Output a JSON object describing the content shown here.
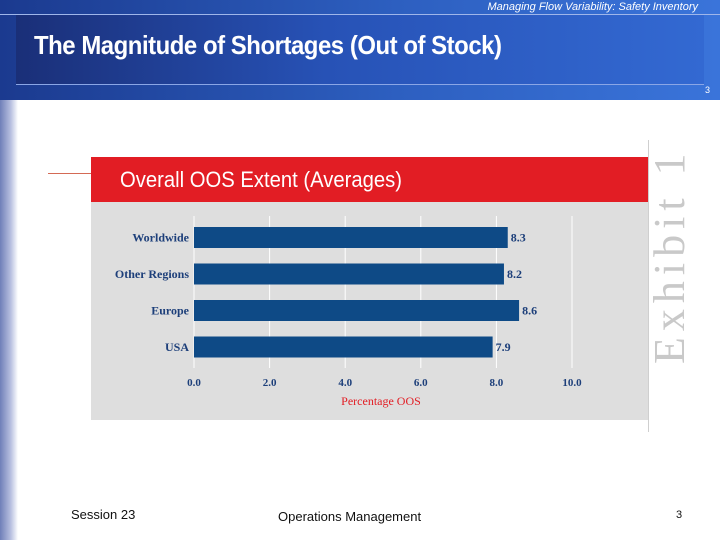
{
  "slide": {
    "subtitle": "Managing Flow Variability:  Safety Inventory",
    "title": "The Magnitude of Shortages  (Out of Stock)",
    "slide_number_top": "3",
    "exhibit_label": "Exhibit 1"
  },
  "footer": {
    "session": "Session 23",
    "course": "Operations Management",
    "page": "3"
  },
  "colors": {
    "bar": "#0e4a86",
    "title_bar": "#e21d24",
    "panel": "#dedede",
    "gridline": "#ffffff"
  },
  "chart_data": {
    "type": "bar",
    "orientation": "horizontal",
    "title": "Overall OOS Extent (Averages)",
    "categories": [
      "Worldwide",
      "Other Regions",
      "Europe",
      "USA"
    ],
    "values": [
      8.3,
      8.2,
      8.6,
      7.9
    ],
    "value_labels": [
      "8.3",
      "8.2",
      "8.6",
      "7.9"
    ],
    "xlabel": "Percentage OOS",
    "ylabel": "",
    "xlim": [
      0,
      10
    ],
    "xticks": [
      0,
      2,
      4,
      6,
      8,
      10
    ],
    "xtick_labels": [
      "0.0",
      "2.0",
      "4.0",
      "6.0",
      "8.0",
      "10.0"
    ],
    "grid": true
  }
}
